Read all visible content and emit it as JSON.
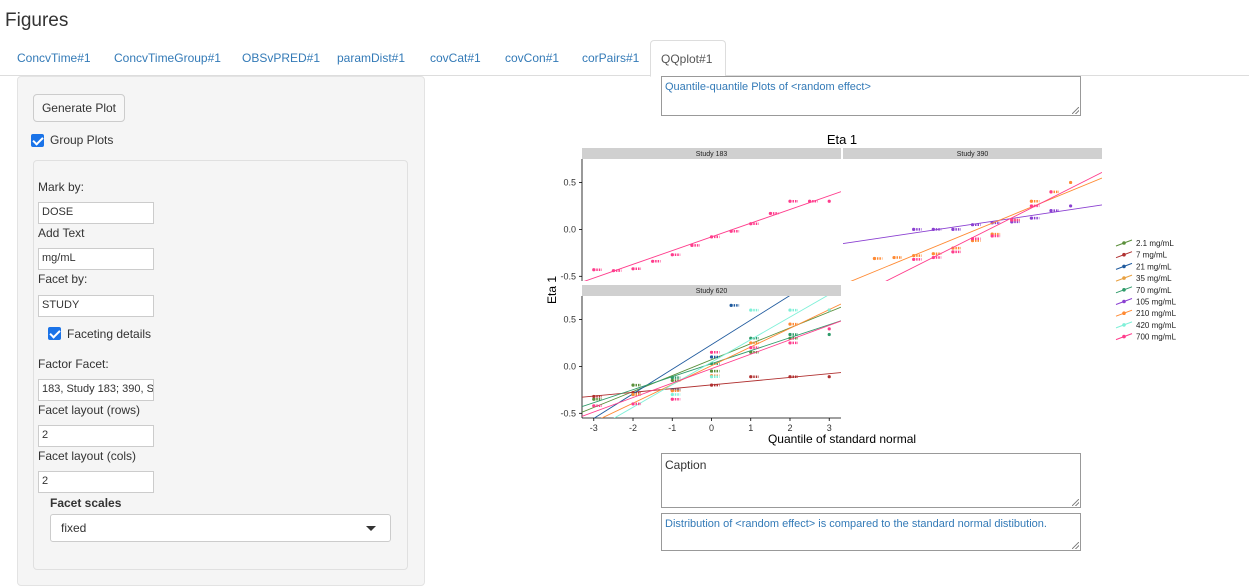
{
  "page": {
    "title": "Figures"
  },
  "tabs": [
    {
      "label": "ConcvTime#1"
    },
    {
      "label": "ConcvTimeGroup#1"
    },
    {
      "label": "OBSvPRED#1"
    },
    {
      "label": "paramDist#1"
    },
    {
      "label": "covCat#1"
    },
    {
      "label": "covCon#1"
    },
    {
      "label": "corPairs#1"
    },
    {
      "label": "QQplot#1"
    }
  ],
  "sidebar": {
    "generate_label": "Generate Plot",
    "group_plots_label": "Group Plots",
    "mark_by_label": "Mark by:",
    "mark_by_value": "DOSE",
    "add_text_label": "Add Text",
    "add_text_value": "mg/mL",
    "facet_by_label": "Facet by:",
    "facet_by_value": "STUDY",
    "faceting_details_label": "Faceting details",
    "factor_facet_label": "Factor Facet:",
    "factor_facet_value": "183, Study 183; 390, St",
    "facet_rows_label": "Facet layout (rows)",
    "facet_rows_value": "2",
    "facet_cols_label": "Facet layout (cols)",
    "facet_cols_value": "2",
    "facet_scales_label": "Facet scales",
    "facet_scales_value": "fixed"
  },
  "main": {
    "title_text": "Quantile-quantile Plots of <random effect>",
    "caption_text": "Caption",
    "footnote_text": "Distribution of <random effect> is compared to the standard normal distibution."
  },
  "chart_data": {
    "type": "scatter",
    "title": "Eta 1",
    "xlabel": "Quantile of standard normal",
    "ylabel": "Eta 1",
    "xlim": [
      -3.3,
      3.3
    ],
    "ylim": [
      -0.55,
      0.75
    ],
    "xticks": [
      "-3",
      "-2",
      "-1",
      "0",
      "1",
      "2",
      "3"
    ],
    "yticks": [
      "-0.5",
      "0.0",
      "0.5"
    ],
    "panels": [
      {
        "name": "Study 183",
        "series": [
          {
            "name": "700 mg/mL",
            "x": [
              -3,
              -2.5,
              -2,
              -1.5,
              -1,
              -0.5,
              0,
              0.5,
              1,
              1.5,
              2,
              2.5,
              3
            ],
            "y": [
              -0.43,
              -0.44,
              -0.42,
              -0.34,
              -0.27,
              -0.17,
              -0.08,
              -0.02,
              0.06,
              0.17,
              0.3,
              0.3,
              0.3
            ]
          }
        ]
      },
      {
        "name": "Study 390",
        "series": [
          {
            "name": "105 mg/mL",
            "x": [
              -1.5,
              -1,
              -0.5,
              0,
              0.5,
              1,
              1.5,
              2,
              2.5
            ],
            "y": [
              0.0,
              0.0,
              0.0,
              0.05,
              0.07,
              0.08,
              0.12,
              0.2,
              0.25
            ]
          },
          {
            "name": "210 mg/mL",
            "x": [
              -2.5,
              -2,
              -1.5,
              -1,
              -0.5,
              0,
              0.5,
              1,
              1.5,
              2,
              2.5
            ],
            "y": [
              -0.31,
              -0.3,
              -0.28,
              -0.26,
              -0.2,
              -0.12,
              -0.05,
              0.1,
              0.3,
              0.4,
              0.5
            ]
          },
          {
            "name": "700 mg/mL",
            "x": [
              -1.5,
              -1,
              -0.5,
              0,
              0.5,
              1,
              1.5,
              2
            ],
            "y": [
              -0.32,
              -0.3,
              -0.24,
              -0.1,
              -0.07,
              0.1,
              0.25,
              0.4
            ]
          }
        ]
      },
      {
        "name": "Study 620",
        "series": [
          {
            "name": "2.1 mg/mL",
            "x": [
              -3,
              -2,
              -1,
              0,
              1,
              2,
              3
            ],
            "y": [
              -0.35,
              -0.2,
              -0.15,
              -0.05,
              0.15,
              0.3,
              0.8
            ]
          },
          {
            "name": "7 mg/mL",
            "x": [
              -3,
              -2,
              -1,
              0,
              1,
              2,
              3
            ],
            "y": [
              -0.32,
              -0.28,
              -0.25,
              -0.2,
              -0.11,
              -0.11,
              -0.11
            ]
          },
          {
            "name": "21 mg/mL",
            "x": [
              -2,
              -1,
              0,
              0.5,
              1,
              2,
              3
            ],
            "y": [
              -0.3,
              -0.25,
              0.1,
              0.65,
              0.78,
              0.78,
              0.78
            ]
          },
          {
            "name": "70 mg/mL",
            "x": [
              -2,
              -1,
              0,
              1,
              2,
              3
            ],
            "y": [
              -0.3,
              -0.12,
              0.03,
              0.3,
              0.34,
              0.34
            ]
          },
          {
            "name": "210 mg/mL",
            "x": [
              -2,
              -1,
              0,
              1,
              2,
              3
            ],
            "y": [
              -0.3,
              -0.26,
              -0.1,
              0.25,
              0.45,
              0.6
            ]
          },
          {
            "name": "420 mg/mL",
            "x": [
              -2,
              -1,
              0,
              1,
              2,
              3
            ],
            "y": [
              -0.4,
              -0.3,
              -0.11,
              0.6,
              0.6,
              0.6
            ]
          },
          {
            "name": "700 mg/mL",
            "x": [
              -3,
              -2,
              -1,
              0,
              1,
              2,
              3
            ],
            "y": [
              -0.42,
              -0.4,
              -0.35,
              0.15,
              0.2,
              0.25,
              0.4
            ]
          }
        ]
      }
    ],
    "legend": [
      "2.1 mg/mL",
      "7 mg/mL",
      "21 mg/mL",
      "35 mg/mL",
      "70 mg/mL",
      "105 mg/mL",
      "210 mg/mL",
      "420 mg/mL",
      "700 mg/mL"
    ],
    "legend_position": "right",
    "colors": {
      "2.1 mg/mL": "#5a8f3a",
      "7 mg/mL": "#b03030",
      "21 mg/mL": "#1f5a9e",
      "35 mg/mL": "#e8a040",
      "70 mg/mL": "#2f9b6a",
      "105 mg/mL": "#8a3fd1",
      "210 mg/mL": "#ff8a33",
      "420 mg/mL": "#7ff0d8",
      "700 mg/mL": "#ff3c8c"
    }
  }
}
